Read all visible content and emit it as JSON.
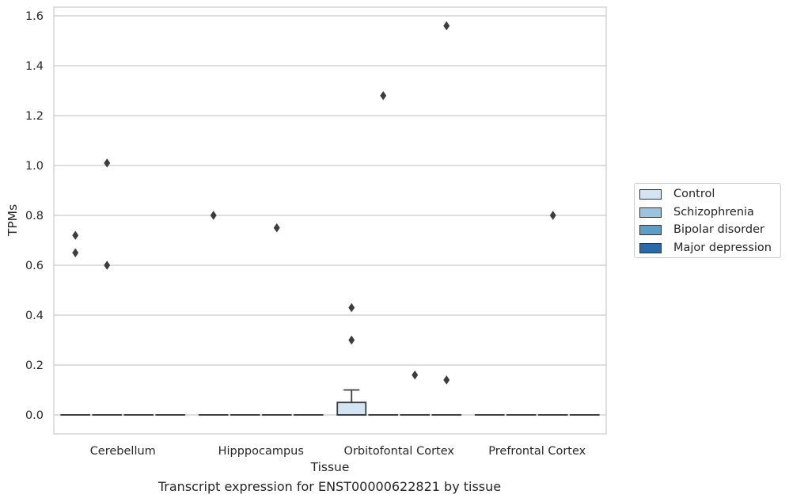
{
  "chart_data": {
    "type": "box",
    "title": "",
    "caption": "Transcript expression for ENST00000622821 by tissue",
    "xlabel": "Tissue",
    "ylabel": "TPMs",
    "ylim": [
      -0.08,
      1.64
    ],
    "yticks": [
      "0.0",
      "0.2",
      "0.4",
      "0.6",
      "0.8",
      "1.0",
      "1.2",
      "1.4",
      "1.6"
    ],
    "ytick_values": [
      0.0,
      0.2,
      0.4,
      0.6,
      0.8,
      1.0,
      1.2,
      1.4,
      1.6
    ],
    "grid": "horizontal",
    "legend_placement": "outside-right",
    "categories": [
      "Cerebellum",
      "Hipppocampus",
      "Orbitofontal Cortex",
      "Prefrontal Cortex"
    ],
    "series": [
      {
        "name": "Control",
        "color": "#d3e4f3",
        "boxes": [
          {
            "q1": 0,
            "median": 0,
            "q3": 0,
            "whisker_low": 0,
            "whisker_high": 0,
            "outliers": [
              0.72,
              0.65
            ]
          },
          {
            "q1": 0,
            "median": 0,
            "q3": 0,
            "whisker_low": 0,
            "whisker_high": 0,
            "outliers": [
              0.8
            ]
          },
          {
            "q1": 0,
            "median": 0,
            "q3": 0.05,
            "whisker_low": 0,
            "whisker_high": 0.1,
            "outliers": [
              0.43,
              0.3
            ]
          },
          {
            "q1": 0,
            "median": 0,
            "q3": 0,
            "whisker_low": 0,
            "whisker_high": 0,
            "outliers": []
          }
        ]
      },
      {
        "name": "Schizophrenia",
        "color": "#9ac4e0",
        "boxes": [
          {
            "q1": 0,
            "median": 0,
            "q3": 0,
            "whisker_low": 0,
            "whisker_high": 0,
            "outliers": [
              1.01,
              0.6
            ]
          },
          {
            "q1": 0,
            "median": 0,
            "q3": 0,
            "whisker_low": 0,
            "whisker_high": 0,
            "outliers": []
          },
          {
            "q1": 0,
            "median": 0,
            "q3": 0,
            "whisker_low": 0,
            "whisker_high": 0,
            "outliers": [
              1.28
            ]
          },
          {
            "q1": 0,
            "median": 0,
            "q3": 0,
            "whisker_low": 0,
            "whisker_high": 0,
            "outliers": []
          }
        ]
      },
      {
        "name": "Bipolar disorder",
        "color": "#5a9ec9",
        "boxes": [
          {
            "q1": 0,
            "median": 0,
            "q3": 0,
            "whisker_low": 0,
            "whisker_high": 0,
            "outliers": []
          },
          {
            "q1": 0,
            "median": 0,
            "q3": 0,
            "whisker_low": 0,
            "whisker_high": 0,
            "outliers": [
              0.75
            ]
          },
          {
            "q1": 0,
            "median": 0,
            "q3": 0,
            "whisker_low": 0,
            "whisker_high": 0,
            "outliers": [
              0.16
            ]
          },
          {
            "q1": 0,
            "median": 0,
            "q3": 0,
            "whisker_low": 0,
            "whisker_high": 0,
            "outliers": [
              0.8
            ]
          }
        ]
      },
      {
        "name": "Major depression",
        "color": "#2b6aa8",
        "boxes": [
          {
            "q1": 0,
            "median": 0,
            "q3": 0,
            "whisker_low": 0,
            "whisker_high": 0,
            "outliers": []
          },
          {
            "q1": 0,
            "median": 0,
            "q3": 0,
            "whisker_low": 0,
            "whisker_high": 0,
            "outliers": []
          },
          {
            "q1": 0,
            "median": 0,
            "q3": 0,
            "whisker_low": 0,
            "whisker_high": 0,
            "outliers": [
              1.56,
              0.14
            ]
          },
          {
            "q1": 0,
            "median": 0,
            "q3": 0,
            "whisker_low": 0,
            "whisker_high": 0,
            "outliers": []
          }
        ]
      }
    ]
  }
}
